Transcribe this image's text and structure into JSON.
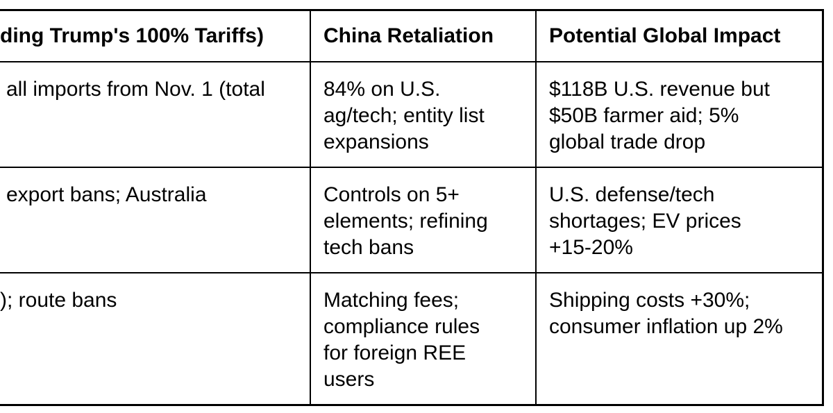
{
  "table": {
    "headers": [
      "ding Trump's 100% Tariffs)",
      "China Retaliation",
      "Potential Global Impact"
    ],
    "rows": [
      [
        [
          "all imports from Nov. 1 (total"
        ],
        [
          "84% on U.S.",
          "ag/tech; entity list",
          "expansions"
        ],
        [
          "$118B U.S. revenue but",
          "$50B farmer aid; 5%",
          "global trade drop"
        ]
      ],
      [
        [
          "export bans; Australia"
        ],
        [
          "Controls on 5+",
          "elements; refining",
          "tech bans"
        ],
        [
          "U.S. defense/tech",
          "shortages; EV prices",
          "+15-20%"
        ]
      ],
      [
        [
          "); route bans"
        ],
        [
          "Matching fees;",
          "compliance rules",
          "for foreign REE",
          "users"
        ],
        [
          "Shipping costs +30%;",
          "consumer inflation up 2%"
        ]
      ]
    ]
  }
}
